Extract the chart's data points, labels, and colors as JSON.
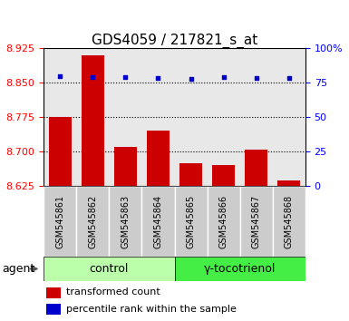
{
  "title": "GDS4059 / 217821_s_at",
  "samples": [
    "GSM545861",
    "GSM545862",
    "GSM545863",
    "GSM545864",
    "GSM545865",
    "GSM545866",
    "GSM545867",
    "GSM545868"
  ],
  "bar_values": [
    8.775,
    8.91,
    8.71,
    8.745,
    8.675,
    8.67,
    8.705,
    8.637
  ],
  "dot_values": [
    8.865,
    8.863,
    8.862,
    8.861,
    8.858,
    8.862,
    8.86,
    8.86
  ],
  "bar_color": "#cc0000",
  "dot_color": "#0000cc",
  "ylim_left": [
    8.625,
    8.925
  ],
  "ylim_right": [
    0,
    100
  ],
  "yticks_left": [
    8.625,
    8.7,
    8.775,
    8.85,
    8.925
  ],
  "yticks_right": [
    0,
    25,
    50,
    75,
    100
  ],
  "ytick_right_labels": [
    "0",
    "25",
    "50",
    "75",
    "100%"
  ],
  "grid_lines": [
    8.85,
    8.775,
    8.7
  ],
  "group_labels": [
    "control",
    "γ-tocotrienol"
  ],
  "control_color": "#bbffaa",
  "toco_color": "#44ee44",
  "agent_label": "agent",
  "legend_bar_label": "transformed count",
  "legend_dot_label": "percentile rank within the sample",
  "bar_width": 0.7,
  "background_color": "#ffffff",
  "plot_bg_color": "#e8e8e8",
  "sample_box_color": "#cccccc",
  "title_fontsize": 11,
  "tick_fontsize": 8,
  "sample_fontsize": 7,
  "group_fontsize": 9,
  "legend_fontsize": 8,
  "agent_fontsize": 9
}
